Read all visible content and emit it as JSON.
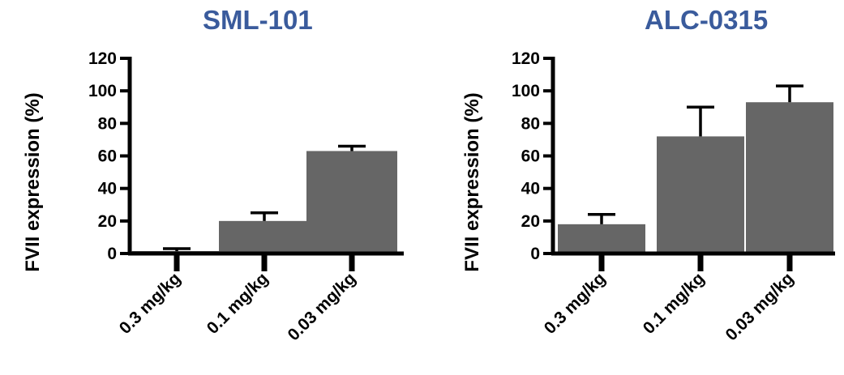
{
  "chart_data": [
    {
      "type": "bar",
      "title": "SML-101",
      "ylabel": "FVII expression (%)",
      "xlabel": "",
      "categories": [
        "0.3 mg/kg",
        "0.1 mg/kg",
        "0.03 mg/kg"
      ],
      "values": [
        1.5,
        20,
        63
      ],
      "error": [
        1.5,
        5,
        3
      ],
      "ylim": [
        0,
        120
      ],
      "yticks": [
        "0",
        "20",
        "40",
        "60",
        "80",
        "100",
        "120"
      ],
      "grid": false,
      "bar_color": "#666666"
    },
    {
      "type": "bar",
      "title": "ALC-0315",
      "ylabel": "FVII expression (%)",
      "xlabel": "",
      "categories": [
        "0.3 mg/kg",
        "0.1 mg/kg",
        "0.03 mg/kg"
      ],
      "values": [
        18,
        72,
        93
      ],
      "error": [
        6,
        18,
        10
      ],
      "ylim": [
        0,
        120
      ],
      "yticks": [
        "0",
        "20",
        "40",
        "60",
        "80",
        "100",
        "120"
      ],
      "grid": false,
      "bar_color": "#666666"
    }
  ],
  "title_color": "#3a5b9c"
}
